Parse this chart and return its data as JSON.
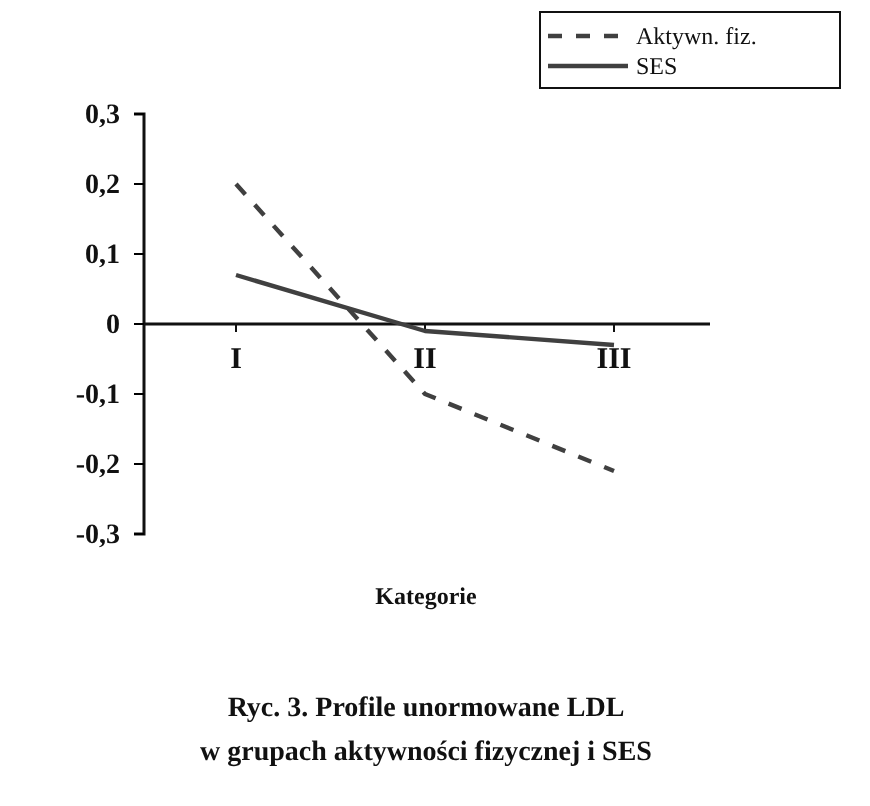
{
  "chart_data": {
    "type": "line",
    "xlabel": "Kategorie",
    "annotations": [
      "Ryc. 3. Profile unormowane LDL",
      "w grupach aktywności fizycznej i SES"
    ],
    "categories": [
      "I",
      "II",
      "III"
    ],
    "series": [
      {
        "name": "Aktywn. fiz.",
        "color": "#404040",
        "line_style": "dashed",
        "values": [
          0.2,
          -0.1,
          -0.21
        ]
      },
      {
        "name": "SES",
        "color": "#404040",
        "line_style": "solid",
        "values": [
          0.07,
          -0.01,
          -0.03
        ]
      }
    ],
    "ylim": [
      -0.3,
      0.3
    ],
    "yticks": [
      {
        "value": 0.3,
        "label": "0,3"
      },
      {
        "value": 0.2,
        "label": "0,2"
      },
      {
        "value": 0.1,
        "label": "0,1"
      },
      0,
      {
        "value": -0.1,
        "label": "-0,1"
      },
      {
        "value": -0.2,
        "label": "-0,2"
      },
      {
        "value": -0.3,
        "label": "-0,3"
      }
    ],
    "grid": false,
    "legend": "top right",
    "marker": "none"
  }
}
